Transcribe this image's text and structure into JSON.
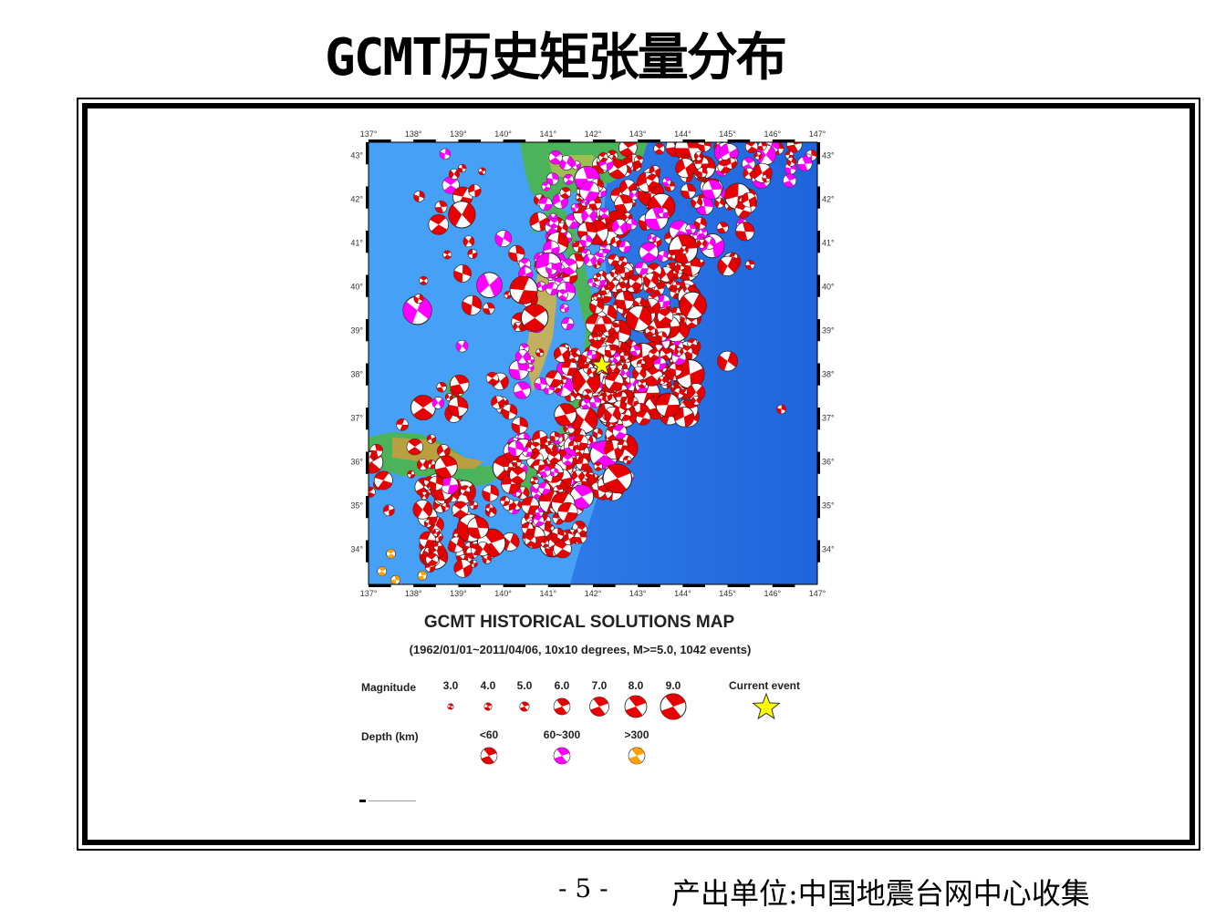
{
  "slide": {
    "title": "GCMT历史矩张量分布",
    "page_number": "- 5 -",
    "source": "产出单位:中国地震台网中心收集"
  },
  "map": {
    "title": "GCMT HISTORICAL SOLUTIONS MAP",
    "subtitle": "(1962/01/01~2011/04/06, 10x10 degrees, M>=5.0, 1042 events)",
    "lon_range": [
      137,
      147
    ],
    "lat_range": [
      33.2,
      43.3
    ],
    "lon_ticks": [
      "137°",
      "138°",
      "139°",
      "140°",
      "141°",
      "142°",
      "143°",
      "144°",
      "145°",
      "146°",
      "147°"
    ],
    "lat_ticks": [
      "43°",
      "42°",
      "41°",
      "40°",
      "39°",
      "38°",
      "37°",
      "36°",
      "35°",
      "34°"
    ],
    "current_event": {
      "lon": 142.2,
      "lat": 38.2
    },
    "colors": {
      "ocean": "#1e64dc",
      "shallow": "#e60000",
      "intermediate": "#ff00ff",
      "deep": "#ffa000",
      "star": "#ffff00"
    }
  },
  "legend": {
    "magnitude_label": "Magnitude",
    "magnitudes": [
      "3.0",
      "4.0",
      "5.0",
      "6.0",
      "7.0",
      "8.0",
      "9.0"
    ],
    "current_event_label": "Current event",
    "depth_label": "Depth (km)",
    "depths": [
      "<60",
      "60~300",
      ">300"
    ]
  }
}
